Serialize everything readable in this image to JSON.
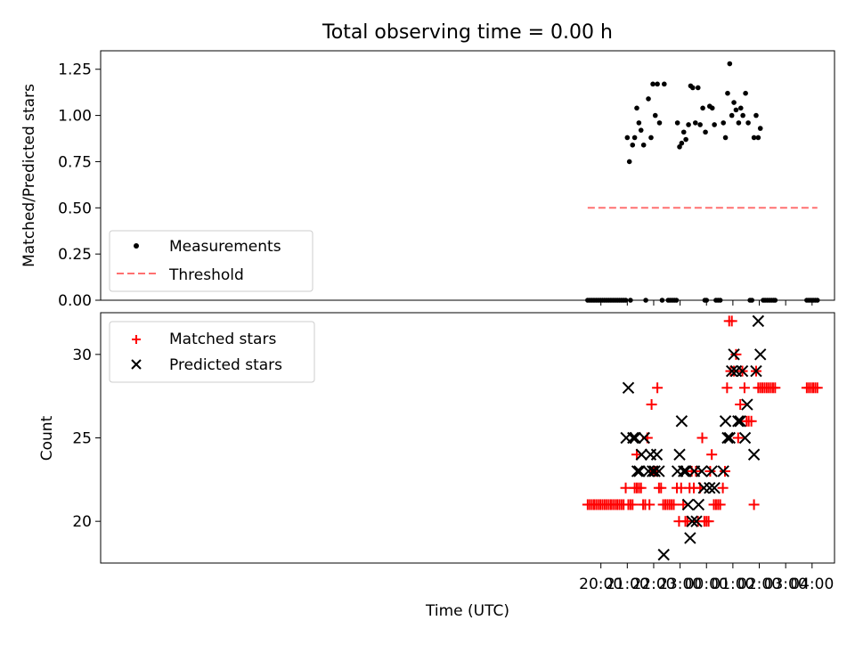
{
  "figure": {
    "title": "Total observing time = 0.00 h",
    "xlabel": "Time (UTC)"
  },
  "chart_data": [
    {
      "type": "scatter",
      "title": "Total observing time = 0.00 h",
      "ylabel": "Matched/Predicted stars",
      "xlim": [
        1.05,
        28.85
      ],
      "ylim": [
        0,
        1.35
      ],
      "yticks": [
        0.0,
        0.25,
        0.5,
        0.75,
        1.0,
        1.25
      ],
      "ytick_labels": [
        "0.00",
        "0.25",
        "0.50",
        "0.75",
        "1.00",
        "1.25"
      ],
      "legend_position": "lower-left",
      "series": [
        {
          "name": "Measurements",
          "marker": "dot",
          "color": "#000000",
          "points": [
            [
              21.0,
              0.88
            ],
            [
              21.08,
              0.75
            ],
            [
              21.2,
              0.84
            ],
            [
              21.28,
              0.88
            ],
            [
              21.36,
              1.04
            ],
            [
              21.44,
              0.96
            ],
            [
              21.52,
              0.92
            ],
            [
              21.62,
              0.84
            ],
            [
              21.8,
              1.09
            ],
            [
              21.9,
              0.88
            ],
            [
              21.97,
              1.17
            ],
            [
              22.06,
              1.0
            ],
            [
              22.14,
              1.17
            ],
            [
              22.22,
              0.96
            ],
            [
              22.4,
              1.17
            ],
            [
              22.9,
              0.96
            ],
            [
              22.98,
              0.83
            ],
            [
              23.06,
              0.85
            ],
            [
              23.14,
              0.91
            ],
            [
              23.22,
              0.87
            ],
            [
              23.32,
              0.95
            ],
            [
              23.4,
              1.16
            ],
            [
              23.48,
              1.15
            ],
            [
              23.58,
              0.96
            ],
            [
              23.68,
              1.15
            ],
            [
              23.76,
              0.95
            ],
            [
              23.86,
              1.04
            ],
            [
              23.96,
              0.91
            ],
            [
              24.12,
              1.05
            ],
            [
              24.22,
              1.04
            ],
            [
              24.3,
              0.95
            ],
            [
              24.64,
              0.96
            ],
            [
              24.72,
              0.88
            ],
            [
              24.8,
              1.12
            ],
            [
              24.88,
              1.28
            ],
            [
              24.96,
              1.0
            ],
            [
              25.04,
              1.07
            ],
            [
              25.12,
              1.03
            ],
            [
              25.22,
              0.96
            ],
            [
              25.3,
              1.04
            ],
            [
              25.38,
              1.0
            ],
            [
              25.48,
              1.12
            ],
            [
              25.58,
              0.96
            ],
            [
              25.8,
              0.88
            ],
            [
              25.88,
              1.0
            ],
            [
              25.96,
              0.88
            ],
            [
              26.04,
              0.93
            ],
            [
              19.5,
              0
            ],
            [
              19.58,
              0
            ],
            [
              19.66,
              0
            ],
            [
              19.74,
              0
            ],
            [
              19.82,
              0
            ],
            [
              19.9,
              0
            ],
            [
              19.98,
              0
            ],
            [
              20.06,
              0
            ],
            [
              20.14,
              0
            ],
            [
              20.22,
              0
            ],
            [
              20.3,
              0
            ],
            [
              20.38,
              0
            ],
            [
              20.46,
              0
            ],
            [
              20.54,
              0
            ],
            [
              20.62,
              0
            ],
            [
              20.7,
              0
            ],
            [
              20.78,
              0
            ],
            [
              20.86,
              0
            ],
            [
              20.94,
              0
            ],
            [
              21.12,
              0
            ],
            [
              21.7,
              0
            ],
            [
              22.32,
              0
            ],
            [
              22.55,
              0
            ],
            [
              22.62,
              0
            ],
            [
              22.7,
              0
            ],
            [
              22.78,
              0
            ],
            [
              22.86,
              0
            ],
            [
              23.94,
              0
            ],
            [
              24.0,
              0
            ],
            [
              24.36,
              0
            ],
            [
              24.44,
              0
            ],
            [
              24.52,
              0
            ],
            [
              25.65,
              0
            ],
            [
              25.72,
              0
            ],
            [
              26.15,
              0
            ],
            [
              26.22,
              0
            ],
            [
              26.3,
              0
            ],
            [
              26.38,
              0
            ],
            [
              26.46,
              0
            ],
            [
              26.54,
              0
            ],
            [
              26.6,
              0
            ],
            [
              27.8,
              0
            ],
            [
              27.88,
              0
            ],
            [
              27.96,
              0
            ],
            [
              28.04,
              0
            ],
            [
              28.12,
              0
            ],
            [
              28.2,
              0
            ]
          ]
        },
        {
          "name": "Threshold",
          "line_style": "dashed",
          "color": "#ff7070",
          "points": [
            [
              19.5,
              0.5
            ],
            [
              28.2,
              0.5
            ]
          ]
        }
      ]
    },
    {
      "type": "scatter",
      "ylabel": "Count",
      "xlim": [
        1.05,
        28.85
      ],
      "ylim": [
        17.5,
        32.5
      ],
      "yticks": [
        20,
        25,
        30
      ],
      "ytick_labels": [
        "20",
        "25",
        "30"
      ],
      "xticks": [
        20,
        21,
        22,
        23,
        24,
        25,
        26,
        27,
        28
      ],
      "xtick_labels": [
        "20:00",
        "21:00",
        "22:00",
        "23:00",
        "00:00",
        "01:00",
        "02:00",
        "03:00",
        "04:00"
      ],
      "xlabel": "Time (UTC)",
      "legend_position": "top-left",
      "series": [
        {
          "name": "Matched stars",
          "marker": "plus",
          "color": "#ff0000",
          "points": [
            [
              19.5,
              21
            ],
            [
              19.58,
              21
            ],
            [
              19.66,
              21
            ],
            [
              19.74,
              21
            ],
            [
              19.82,
              21
            ],
            [
              19.9,
              21
            ],
            [
              19.98,
              21
            ],
            [
              20.06,
              21
            ],
            [
              20.14,
              21
            ],
            [
              20.22,
              21
            ],
            [
              20.3,
              21
            ],
            [
              20.38,
              21
            ],
            [
              20.46,
              21
            ],
            [
              20.54,
              21
            ],
            [
              20.62,
              21
            ],
            [
              20.7,
              21
            ],
            [
              20.78,
              21
            ],
            [
              20.86,
              21
            ],
            [
              20.94,
              22
            ],
            [
              21.04,
              21
            ],
            [
              21.12,
              21
            ],
            [
              21.2,
              21
            ],
            [
              21.28,
              22
            ],
            [
              21.36,
              22
            ],
            [
              21.44,
              22
            ],
            [
              21.52,
              22
            ],
            [
              21.36,
              24
            ],
            [
              21.6,
              21
            ],
            [
              21.68,
              21
            ],
            [
              21.76,
              25
            ],
            [
              21.84,
              21
            ],
            [
              21.92,
              27
            ],
            [
              22.0,
              23
            ],
            [
              22.06,
              23
            ],
            [
              22.14,
              28
            ],
            [
              22.2,
              22
            ],
            [
              22.28,
              22
            ],
            [
              22.36,
              21
            ],
            [
              22.44,
              21
            ],
            [
              22.52,
              21
            ],
            [
              22.6,
              21
            ],
            [
              22.68,
              21
            ],
            [
              22.76,
              21
            ],
            [
              22.88,
              22
            ],
            [
              22.96,
              20
            ],
            [
              23.04,
              22
            ],
            [
              23.12,
              21
            ],
            [
              23.2,
              20
            ],
            [
              23.28,
              20
            ],
            [
              23.36,
              22
            ],
            [
              23.44,
              23
            ],
            [
              23.52,
              22
            ],
            [
              23.6,
              23
            ],
            [
              23.68,
              20
            ],
            [
              23.76,
              22
            ],
            [
              23.84,
              25
            ],
            [
              23.92,
              20
            ],
            [
              24.0,
              20
            ],
            [
              24.08,
              20
            ],
            [
              24.14,
              23
            ],
            [
              24.2,
              24
            ],
            [
              24.28,
              21
            ],
            [
              24.36,
              21
            ],
            [
              24.44,
              21
            ],
            [
              24.52,
              21
            ],
            [
              24.62,
              22
            ],
            [
              24.7,
              23
            ],
            [
              24.78,
              28
            ],
            [
              24.86,
              32
            ],
            [
              24.96,
              32
            ],
            [
              24.92,
              29
            ],
            [
              25.04,
              29
            ],
            [
              25.12,
              30
            ],
            [
              25.2,
              25
            ],
            [
              25.28,
              27
            ],
            [
              25.36,
              29
            ],
            [
              25.44,
              28
            ],
            [
              25.52,
              26
            ],
            [
              25.6,
              26
            ],
            [
              25.7,
              26
            ],
            [
              25.8,
              21
            ],
            [
              25.88,
              29
            ],
            [
              25.96,
              28
            ],
            [
              26.04,
              28
            ],
            [
              26.12,
              28
            ],
            [
              26.2,
              28
            ],
            [
              26.28,
              28
            ],
            [
              26.36,
              28
            ],
            [
              26.44,
              28
            ],
            [
              26.52,
              28
            ],
            [
              26.6,
              28
            ],
            [
              27.8,
              28
            ],
            [
              27.88,
              28
            ],
            [
              27.96,
              28
            ],
            [
              28.04,
              28
            ],
            [
              28.12,
              28
            ],
            [
              28.2,
              28
            ]
          ]
        },
        {
          "name": "Predicted stars",
          "marker": "x",
          "color": "#000000",
          "points": [
            [
              20.96,
              25
            ],
            [
              21.04,
              28
            ],
            [
              21.22,
              25
            ],
            [
              21.3,
              25
            ],
            [
              21.38,
              23
            ],
            [
              21.46,
              23
            ],
            [
              21.54,
              24
            ],
            [
              21.64,
              25
            ],
            [
              21.8,
              23
            ],
            [
              21.88,
              24
            ],
            [
              21.96,
              23
            ],
            [
              22.04,
              23
            ],
            [
              22.12,
              24
            ],
            [
              22.2,
              23
            ],
            [
              22.38,
              18
            ],
            [
              22.9,
              23
            ],
            [
              22.98,
              24
            ],
            [
              23.06,
              26
            ],
            [
              23.14,
              23
            ],
            [
              23.22,
              23
            ],
            [
              23.3,
              21
            ],
            [
              23.38,
              19
            ],
            [
              23.46,
              20
            ],
            [
              23.54,
              23
            ],
            [
              23.62,
              20
            ],
            [
              23.7,
              21
            ],
            [
              23.82,
              23
            ],
            [
              23.9,
              22
            ],
            [
              24.12,
              22
            ],
            [
              24.2,
              23
            ],
            [
              24.3,
              22
            ],
            [
              24.64,
              23
            ],
            [
              24.72,
              26
            ],
            [
              24.8,
              25
            ],
            [
              24.88,
              25
            ],
            [
              24.96,
              29
            ],
            [
              25.04,
              30
            ],
            [
              25.12,
              29
            ],
            [
              25.2,
              26
            ],
            [
              25.28,
              26
            ],
            [
              25.36,
              29
            ],
            [
              25.46,
              25
            ],
            [
              25.54,
              27
            ],
            [
              25.8,
              24
            ],
            [
              25.88,
              29
            ],
            [
              25.96,
              32
            ],
            [
              26.04,
              30
            ]
          ]
        }
      ]
    }
  ]
}
